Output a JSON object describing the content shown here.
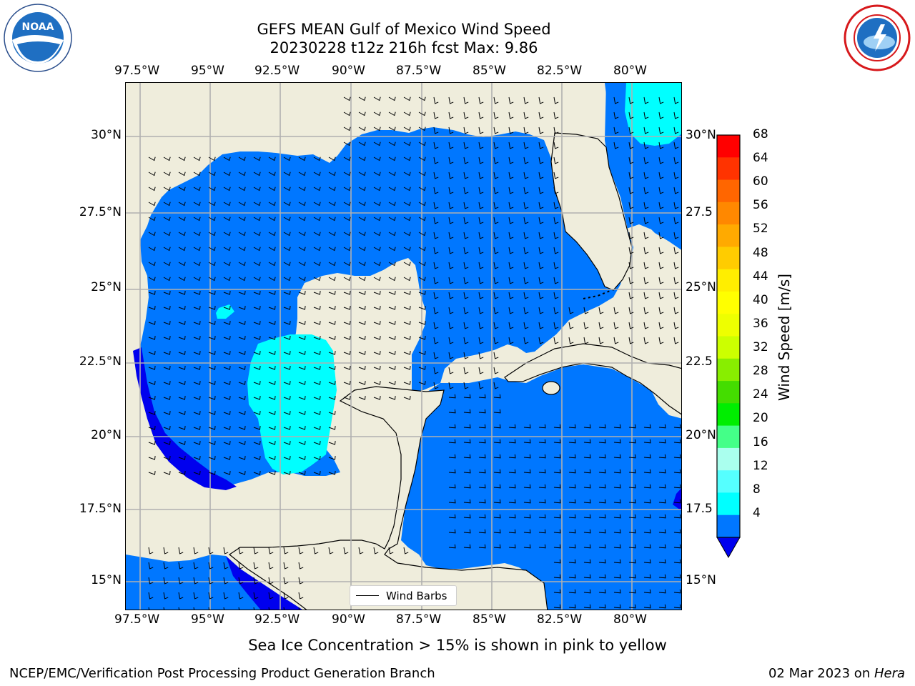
{
  "title": {
    "line1": "GEFS MEAN Gulf of Mexico Wind Speed",
    "line2": "20230228 t12z 216h fcst   Max: 9.86"
  },
  "logos": {
    "left": {
      "name": "NOAA",
      "ring_text": "NATIONAL OCEANIC AND ATMOSPHERIC ADMINISTRATION · U.S. DEPARTMENT OF COMMERCE"
    },
    "right": {
      "ring_text": "NATIONAL WEATHER SERVICE"
    }
  },
  "map": {
    "lon_ticks": [
      "97.5°W",
      "95°W",
      "92.5°W",
      "90°W",
      "87.5°W",
      "85°W",
      "82.5°W",
      "80°W"
    ],
    "lat_ticks_left": [
      "30°N",
      "27.5°N",
      "25°N",
      "22.5°N",
      "20°N",
      "17.5°N",
      "15°N"
    ],
    "lat_ticks_right": [
      "30°N",
      "27.5",
      "25°N",
      "22.5",
      "20°N",
      "17.5",
      "15°N"
    ],
    "legend_label": "Wind Barbs",
    "colors": {
      "land": "#efeddc",
      "speed_4_8": "#0077ff",
      "speed_8_12": "#00ffff",
      "speed_below_4": "#0000ee",
      "grid": "#b0b0b0"
    }
  },
  "colorbar": {
    "label": "Wind Speed [m/s]",
    "ticks": [
      "68",
      "64",
      "60",
      "56",
      "52",
      "48",
      "44",
      "40",
      "36",
      "32",
      "28",
      "24",
      "20",
      "16",
      "12",
      "8",
      "4"
    ],
    "colors": [
      "#ff0000",
      "#ff3300",
      "#ff6600",
      "#ff8800",
      "#ffaa00",
      "#ffcc00",
      "#ffee00",
      "#ffff00",
      "#eeff00",
      "#ccff00",
      "#88ee00",
      "#44dd00",
      "#00ee00",
      "#44ff88",
      "#aaffee",
      "#55ffff",
      "#00ffff",
      "#0077ff"
    ],
    "extend_color": "#0000ee"
  },
  "caption": "Sea Ice Concentration > 15% is shown in pink to yellow",
  "footer": {
    "left": "NCEP/EMC/Verification Post Processing Product Generation Branch",
    "right_date": "02 Mar 2023 on ",
    "right_machine": "Hera"
  }
}
